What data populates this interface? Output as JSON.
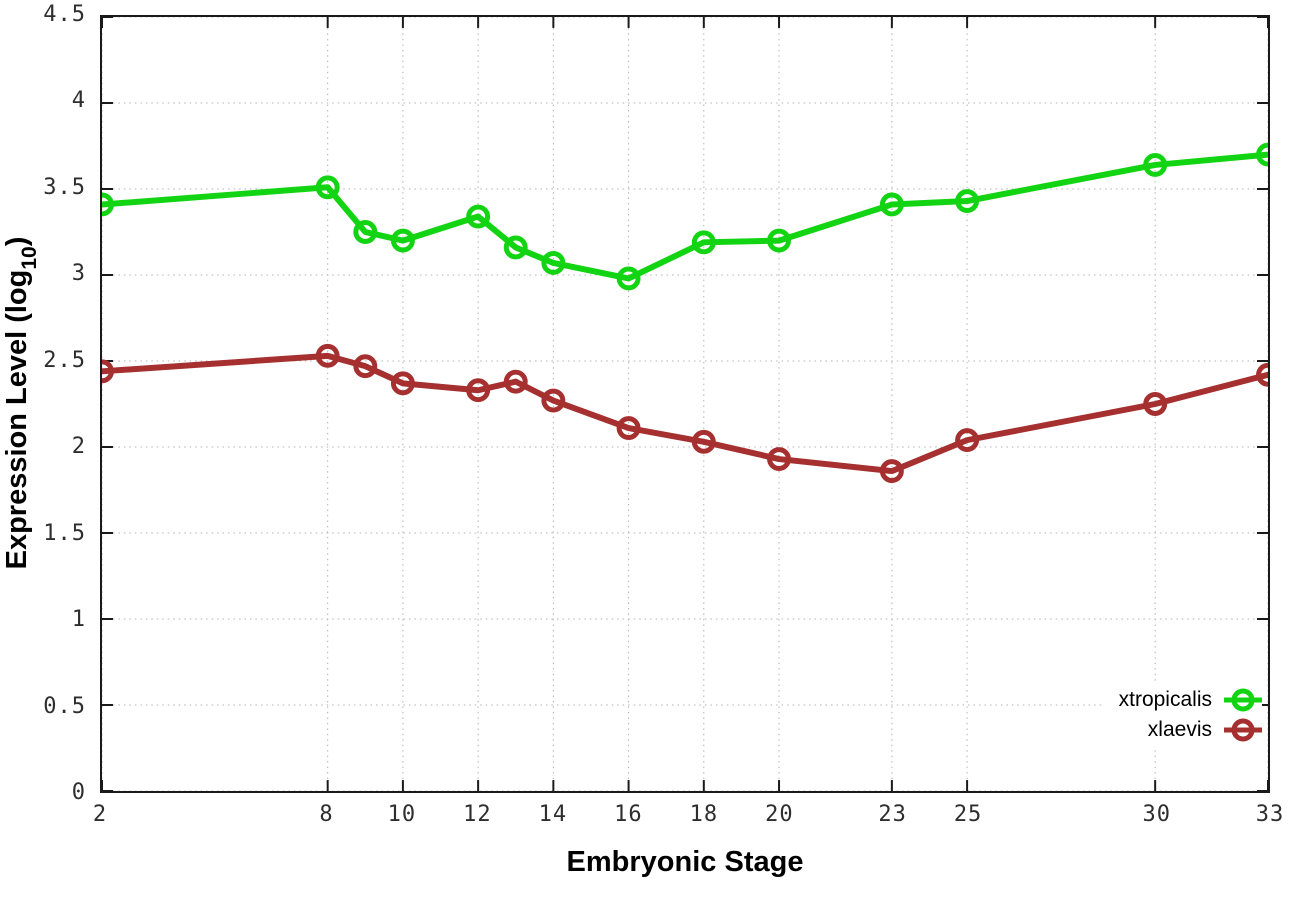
{
  "figure": {
    "background": "#ffffff",
    "border_color": "#1a1a1a",
    "grid_color": "#b3b3b3",
    "tick_color": "#1a1a1a",
    "tick_label_color": "#2e2e2e",
    "axis_label_color": "#000000"
  },
  "chart_data": {
    "type": "line",
    "title": "",
    "xlabel": "Embryonic Stage",
    "ylabel": "Expression Level (log10)",
    "ylabel_parts": {
      "main": "Expression Level (log",
      "sub": "10",
      "close": ")"
    },
    "xlim": [
      2,
      33
    ],
    "ylim": [
      0,
      4.5
    ],
    "grid": true,
    "grid_style": "dotted",
    "legend_position": "bottom-right",
    "x_ticks": [
      2,
      8,
      10,
      12,
      14,
      16,
      18,
      20,
      23,
      25,
      30,
      33
    ],
    "x_tick_labels": [
      "2",
      "8",
      "10",
      "12",
      "14",
      "16",
      "18",
      "20",
      "23",
      "25",
      "30",
      "33"
    ],
    "y_ticks": [
      0,
      0.5,
      1,
      1.5,
      2,
      2.5,
      3,
      3.5,
      4,
      4.5
    ],
    "y_tick_labels": [
      "0",
      "0.5",
      "1",
      "1.5",
      "2",
      "2.5",
      "3",
      "3.5",
      "4",
      "4.5"
    ],
    "x": [
      2,
      8,
      9,
      10,
      12,
      13,
      14,
      16,
      18,
      20,
      23,
      25,
      30,
      33
    ],
    "series": [
      {
        "name": "xtropicalis",
        "color": "#12d412",
        "marker": "open-circle",
        "values": [
          3.41,
          3.51,
          3.25,
          3.2,
          3.34,
          3.16,
          3.07,
          2.98,
          3.19,
          3.2,
          3.41,
          3.43,
          3.64,
          3.7
        ]
      },
      {
        "name": "xlaevis",
        "color": "#a62f2f",
        "marker": "open-circle",
        "values": [
          2.44,
          2.53,
          2.47,
          2.37,
          2.33,
          2.38,
          2.27,
          2.11,
          2.03,
          1.93,
          1.86,
          2.04,
          2.25,
          2.42
        ]
      }
    ]
  }
}
